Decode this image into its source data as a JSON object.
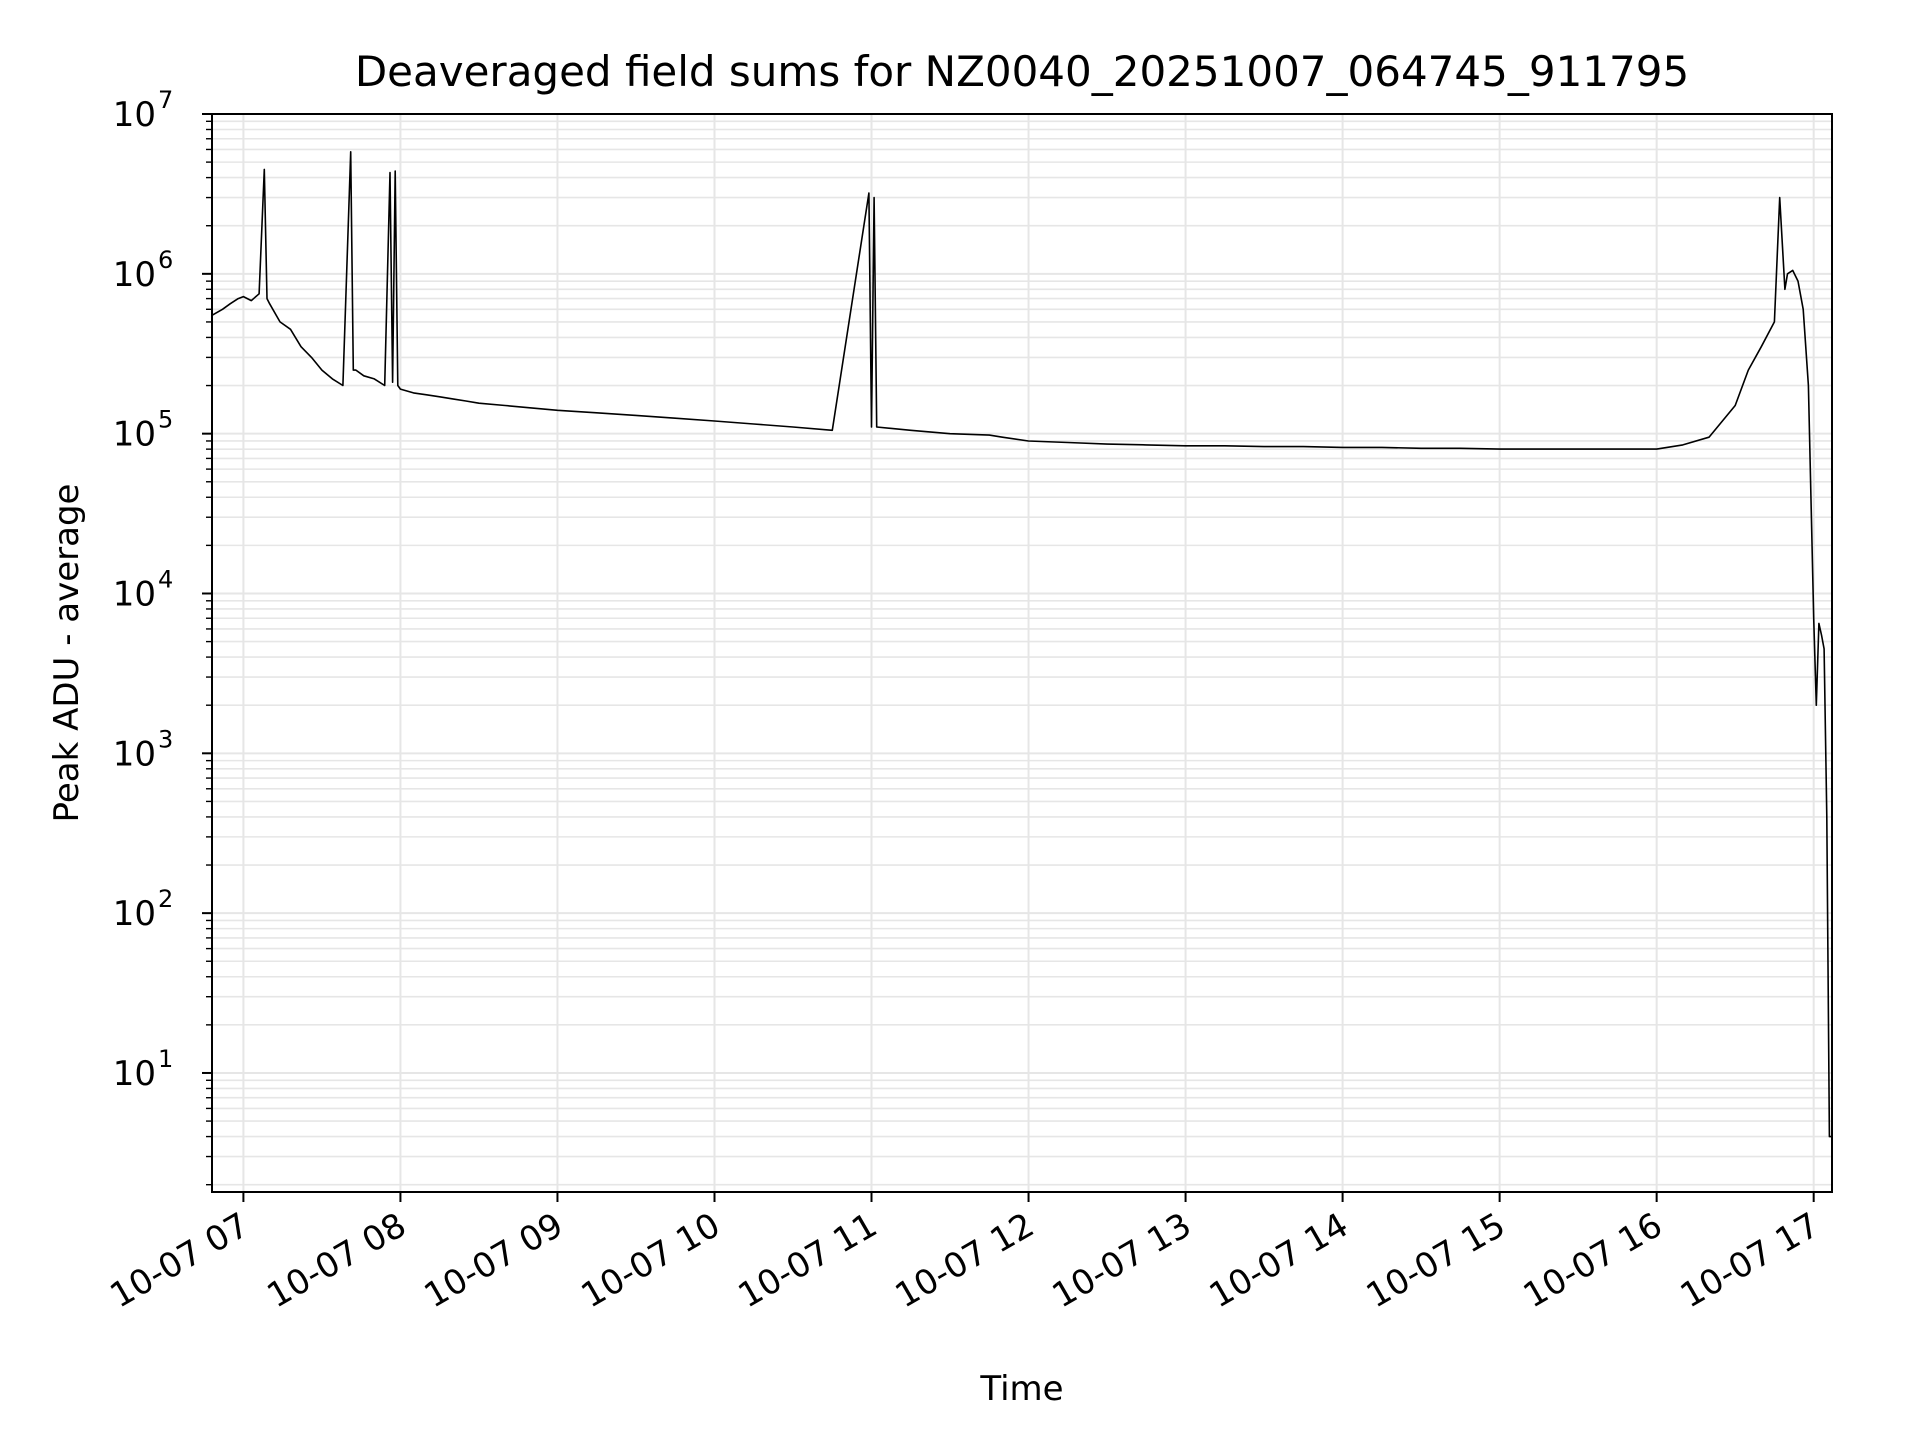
{
  "chart_data": {
    "type": "line",
    "title": "Deaveraged field sums for NZ0040_20251007_064745_911795",
    "xlabel": "Time",
    "ylabel": "Peak ADU - average",
    "yscale": "log",
    "ylim": [
      1.8,
      10000000
    ],
    "xlim": [
      "2025-10-07 06:48",
      "2025-10-07 17:07"
    ],
    "grid": true,
    "line_color": "#000000",
    "grid_color": "#e6e6e6",
    "x_ticks": [
      "10-07 07",
      "10-07 08",
      "10-07 09",
      "10-07 10",
      "10-07 11",
      "10-07 12",
      "10-07 13",
      "10-07 14",
      "10-07 15",
      "10-07 16",
      "10-07 17"
    ],
    "y_ticks": [
      {
        "base": "10",
        "exp": "1"
      },
      {
        "base": "10",
        "exp": "2"
      },
      {
        "base": "10",
        "exp": "3"
      },
      {
        "base": "10",
        "exp": "4"
      },
      {
        "base": "10",
        "exp": "5"
      },
      {
        "base": "10",
        "exp": "6"
      },
      {
        "base": "10",
        "exp": "7"
      }
    ],
    "series": [
      {
        "values_note_free": true,
        "x": [
          "2025-10-07 06:48",
          "2025-10-07 06:52",
          "2025-10-07 06:55",
          "2025-10-07 06:58",
          "2025-10-07 07:00",
          "2025-10-07 07:03",
          "2025-10-07 07:06",
          "2025-10-07 07:08",
          "2025-10-07 07:09",
          "2025-10-07 07:10",
          "2025-10-07 07:14",
          "2025-10-07 07:18",
          "2025-10-07 07:22",
          "2025-10-07 07:26",
          "2025-10-07 07:30",
          "2025-10-07 07:34",
          "2025-10-07 07:38",
          "2025-10-07 07:41",
          "2025-10-07 07:42",
          "2025-10-07 07:43",
          "2025-10-07 07:46",
          "2025-10-07 07:50",
          "2025-10-07 07:54",
          "2025-10-07 07:56",
          "2025-10-07 07:57",
          "2025-10-07 07:58",
          "2025-10-07 07:59",
          "2025-10-07 08:00",
          "2025-10-07 08:05",
          "2025-10-07 08:10",
          "2025-10-07 08:15",
          "2025-10-07 08:20",
          "2025-10-07 08:25",
          "2025-10-07 08:30",
          "2025-10-07 08:40",
          "2025-10-07 08:50",
          "2025-10-07 09:00",
          "2025-10-07 09:15",
          "2025-10-07 09:30",
          "2025-10-07 09:45",
          "2025-10-07 10:00",
          "2025-10-07 10:15",
          "2025-10-07 10:30",
          "2025-10-07 10:45",
          "2025-10-07 10:59",
          "2025-10-07 11:00",
          "2025-10-07 11:01",
          "2025-10-07 11:02",
          "2025-10-07 11:15",
          "2025-10-07 11:30",
          "2025-10-07 11:45",
          "2025-10-07 11:50",
          "2025-10-07 12:00",
          "2025-10-07 12:15",
          "2025-10-07 12:30",
          "2025-10-07 12:45",
          "2025-10-07 13:00",
          "2025-10-07 13:15",
          "2025-10-07 13:30",
          "2025-10-07 13:45",
          "2025-10-07 14:00",
          "2025-10-07 14:15",
          "2025-10-07 14:30",
          "2025-10-07 14:45",
          "2025-10-07 15:00",
          "2025-10-07 15:15",
          "2025-10-07 15:30",
          "2025-10-07 15:45",
          "2025-10-07 16:00",
          "2025-10-07 16:10",
          "2025-10-07 16:20",
          "2025-10-07 16:30",
          "2025-10-07 16:35",
          "2025-10-07 16:40",
          "2025-10-07 16:45",
          "2025-10-07 16:47",
          "2025-10-07 16:49",
          "2025-10-07 16:50",
          "2025-10-07 16:52",
          "2025-10-07 16:54",
          "2025-10-07 16:56",
          "2025-10-07 16:58",
          "2025-10-07 17:00",
          "2025-10-07 17:01",
          "2025-10-07 17:02",
          "2025-10-07 17:03",
          "2025-10-07 17:04",
          "2025-10-07 17:05",
          "2025-10-07 17:06",
          "2025-10-07 17:07"
        ],
        "values": [
          550000,
          600000,
          650000,
          700000,
          720000,
          680000,
          750000,
          4500000,
          700000,
          650000,
          500000,
          450000,
          350000,
          300000,
          250000,
          220000,
          200000,
          5800000,
          250000,
          250000,
          230000,
          220000,
          200000,
          4300000,
          210000,
          4400000,
          200000,
          190000,
          180000,
          175000,
          170000,
          165000,
          160000,
          155000,
          150000,
          145000,
          140000,
          135000,
          130000,
          125000,
          120000,
          115000,
          110000,
          105000,
          3200000,
          110000,
          3000000,
          110000,
          105000,
          100000,
          98000,
          95000,
          90000,
          88000,
          86000,
          85000,
          84000,
          84000,
          83000,
          83000,
          82000,
          82000,
          81000,
          81000,
          80000,
          80000,
          80000,
          80000,
          80000,
          85000,
          95000,
          150000,
          250000,
          350000,
          500000,
          3000000,
          800000,
          1000000,
          1050000,
          900000,
          600000,
          200000,
          7000,
          2000,
          6500,
          5500,
          4500,
          400,
          4,
          4
        ]
      }
    ]
  }
}
